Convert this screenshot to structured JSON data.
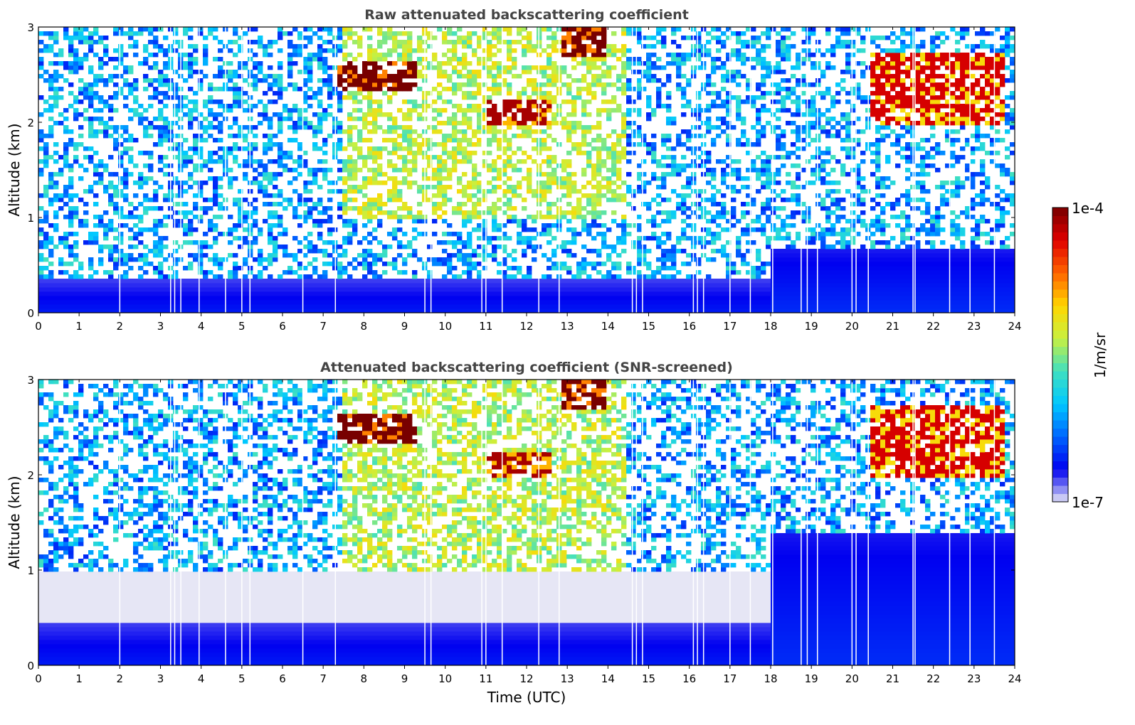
{
  "chart_data": [
    {
      "type": "heatmap",
      "title": "Raw attenuated backscattering coefficient",
      "xlabel": "",
      "ylabel": "Altitude (km)",
      "xlim": [
        0,
        24
      ],
      "ylim": [
        0,
        3
      ],
      "x_ticks": [
        "0",
        "1",
        "2",
        "3",
        "4",
        "5",
        "6",
        "7",
        "8",
        "9",
        "10",
        "11",
        "12",
        "13",
        "14",
        "15",
        "16",
        "17",
        "18",
        "19",
        "20",
        "21",
        "22",
        "23",
        "24"
      ],
      "y_ticks": [
        "0",
        "1",
        "2",
        "3"
      ],
      "features": [
        {
          "kind": "boundary_layer",
          "x_range": [
            0,
            18
          ],
          "top_km": 0.35,
          "level": 0.08
        },
        {
          "kind": "boundary_layer",
          "x_range": [
            18,
            24
          ],
          "top_km": 0.65,
          "level": 0.1
        },
        {
          "kind": "aerosol_plume",
          "x_range": [
            7.5,
            14.5
          ],
          "alt_range_km": [
            1.0,
            3.0
          ],
          "level": 0.55
        },
        {
          "kind": "cloud",
          "x_range": [
            7.4,
            9.3
          ],
          "alt_range_km": [
            2.35,
            2.65
          ],
          "level": 1.0
        },
        {
          "kind": "cloud",
          "x_range": [
            12.8,
            14.0
          ],
          "alt_range_km": [
            2.7,
            3.0
          ],
          "level": 1.0
        },
        {
          "kind": "cloud",
          "x_range": [
            11.0,
            12.6
          ],
          "alt_range_km": [
            1.95,
            2.25
          ],
          "level": 0.95
        },
        {
          "kind": "cloud",
          "x_range": [
            20.4,
            23.8
          ],
          "alt_range_km": [
            1.95,
            2.75
          ],
          "level": 0.9
        }
      ]
    },
    {
      "type": "heatmap",
      "title": "Attenuated backscattering coefficient (SNR-screened)",
      "xlabel": "Time (UTC)",
      "ylabel": "Altitude (km)",
      "xlim": [
        0,
        24
      ],
      "ylim": [
        0,
        3
      ],
      "x_ticks": [
        "0",
        "1",
        "2",
        "3",
        "4",
        "5",
        "6",
        "7",
        "8",
        "9",
        "10",
        "11",
        "12",
        "13",
        "14",
        "15",
        "16",
        "17",
        "18",
        "19",
        "20",
        "21",
        "22",
        "23",
        "24"
      ],
      "y_ticks": [
        "0",
        "1",
        "2",
        "3"
      ],
      "features": [
        {
          "kind": "boundary_layer",
          "x_range": [
            0,
            18
          ],
          "top_km": 0.45,
          "level": 0.08
        },
        {
          "kind": "residual_layer",
          "x_range": [
            0,
            18
          ],
          "alt_range_km": [
            0.45,
            1.0
          ],
          "level": 0.0
        },
        {
          "kind": "boundary_layer",
          "x_range": [
            18,
            24
          ],
          "top_km": 1.4,
          "level": 0.1
        },
        {
          "kind": "aerosol_plume",
          "x_range": [
            7.5,
            14.5
          ],
          "alt_range_km": [
            1.0,
            3.0
          ],
          "level": 0.55
        },
        {
          "kind": "cloud",
          "x_range": [
            7.4,
            9.3
          ],
          "alt_range_km": [
            2.35,
            2.65
          ],
          "level": 1.0
        },
        {
          "kind": "cloud",
          "x_range": [
            12.8,
            14.0
          ],
          "alt_range_km": [
            2.7,
            3.0
          ],
          "level": 1.0
        },
        {
          "kind": "cloud",
          "x_range": [
            11.0,
            12.6
          ],
          "alt_range_km": [
            1.95,
            2.25
          ],
          "level": 0.95
        },
        {
          "kind": "cloud",
          "x_range": [
            20.4,
            23.8
          ],
          "alt_range_km": [
            1.95,
            2.75
          ],
          "level": 0.9
        }
      ]
    }
  ],
  "colorbar": {
    "label": "1/m/sr",
    "max_label": "1e-4",
    "min_label": "1e-7",
    "range": [
      1e-07,
      0.0001
    ],
    "scale": "log",
    "colormap": [
      "#e6e6f5",
      "#0000f0",
      "#0064ff",
      "#00c8ff",
      "#40e0c0",
      "#c8f040",
      "#ffd700",
      "#ff6400",
      "#e00000",
      "#780000"
    ]
  },
  "gap_times_h": [
    2.0,
    3.25,
    3.35,
    3.5,
    3.95,
    4.6,
    5.0,
    5.2,
    6.5,
    7.3,
    9.5,
    9.65,
    10.9,
    11.0,
    11.4,
    12.3,
    12.8,
    14.6,
    14.7,
    14.85,
    16.1,
    16.2,
    16.35,
    17.0,
    17.5,
    18.05,
    18.75,
    18.9,
    19.15,
    20.0,
    20.1,
    20.4,
    21.5,
    21.55,
    22.4,
    22.9,
    23.5
  ]
}
